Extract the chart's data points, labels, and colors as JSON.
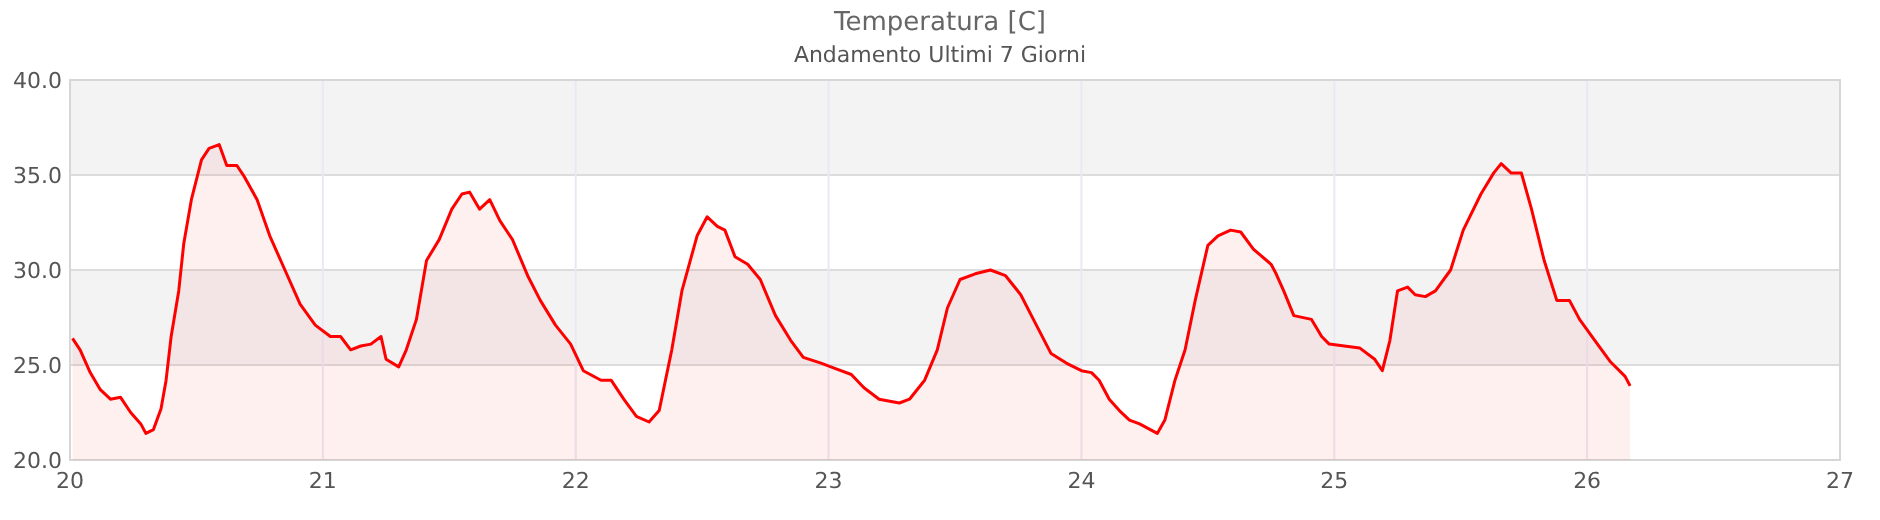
{
  "chart_data": {
    "type": "area",
    "title": "Temperatura [C]",
    "subtitle": "Andamento Ultimi 7 Giorni",
    "x": [
      20.01,
      20.04,
      20.08,
      20.12,
      20.16,
      20.2,
      20.24,
      20.28,
      20.3,
      20.33,
      20.36,
      20.38,
      20.4,
      20.43,
      20.45,
      20.48,
      20.52,
      20.55,
      20.59,
      20.62,
      20.66,
      20.69,
      20.74,
      20.79,
      20.85,
      20.91,
      20.97,
      21.03,
      21.07,
      21.11,
      21.15,
      21.19,
      21.23,
      21.25,
      21.3,
      21.33,
      21.37,
      21.41,
      21.46,
      21.51,
      21.55,
      21.58,
      21.62,
      21.66,
      21.7,
      21.75,
      21.81,
      21.86,
      21.92,
      21.98,
      22.03,
      22.1,
      22.14,
      22.19,
      22.24,
      22.29,
      22.33,
      22.38,
      22.42,
      22.48,
      22.52,
      22.56,
      22.59,
      22.63,
      22.68,
      22.73,
      22.79,
      22.85,
      22.9,
      22.97,
      23.03,
      23.09,
      23.14,
      23.2,
      23.28,
      23.32,
      23.38,
      23.43,
      23.47,
      23.52,
      23.58,
      23.64,
      23.7,
      23.76,
      23.81,
      23.88,
      23.94,
      24.0,
      24.04,
      24.07,
      24.11,
      24.15,
      24.19,
      24.23,
      24.3,
      24.33,
      24.37,
      24.41,
      24.45,
      24.5,
      24.54,
      24.59,
      24.63,
      24.68,
      24.75,
      24.77,
      24.8,
      24.84,
      24.91,
      24.95,
      24.98,
      25.04,
      25.1,
      25.16,
      25.19,
      25.22,
      25.25,
      25.29,
      25.32,
      25.36,
      25.4,
      25.46,
      25.51,
      25.58,
      25.63,
      25.66,
      25.7,
      25.74,
      25.78,
      25.83,
      25.88,
      25.93,
      25.97,
      26.03,
      26.09,
      26.15,
      26.17
    ],
    "series": [
      {
        "color": "#ff0000",
        "values": [
          26.4,
          25.8,
          24.6,
          23.7,
          23.2,
          23.3,
          22.5,
          21.9,
          21.4,
          21.6,
          22.7,
          24.2,
          26.5,
          28.9,
          31.4,
          33.7,
          35.8,
          36.4,
          36.6,
          35.5,
          35.5,
          34.9,
          33.7,
          31.8,
          30.0,
          28.2,
          27.1,
          26.5,
          26.5,
          25.8,
          26.0,
          26.1,
          26.5,
          25.3,
          24.9,
          25.8,
          27.4,
          30.5,
          31.6,
          33.2,
          34.0,
          34.1,
          33.2,
          33.7,
          32.6,
          31.6,
          29.7,
          28.4,
          27.1,
          26.1,
          24.7,
          24.2,
          24.2,
          23.2,
          22.3,
          22.0,
          22.6,
          25.8,
          28.9,
          31.8,
          32.8,
          32.3,
          32.1,
          30.7,
          30.3,
          29.5,
          27.6,
          26.3,
          25.4,
          25.1,
          24.8,
          24.5,
          23.8,
          23.2,
          23.0,
          23.2,
          24.2,
          25.8,
          28.0,
          29.5,
          29.8,
          30.0,
          29.7,
          28.7,
          27.4,
          25.6,
          25.1,
          24.7,
          24.6,
          24.2,
          23.2,
          22.6,
          22.1,
          21.9,
          21.4,
          22.1,
          24.2,
          25.8,
          28.4,
          31.3,
          31.8,
          32.1,
          32.0,
          31.1,
          30.3,
          29.8,
          28.9,
          27.6,
          27.4,
          26.5,
          26.1,
          26.0,
          25.9,
          25.3,
          24.7,
          26.3,
          28.9,
          29.1,
          28.7,
          28.6,
          28.9,
          30.0,
          32.1,
          34.0,
          35.1,
          35.6,
          35.1,
          35.1,
          33.2,
          30.5,
          28.4,
          28.4,
          27.4,
          26.3,
          25.2,
          24.4,
          23.9
        ]
      }
    ],
    "xlim": [
      20,
      27
    ],
    "xticks": [
      20,
      21,
      22,
      23,
      24,
      25,
      26,
      27
    ],
    "ylim": [
      20,
      40
    ],
    "yticks": [
      {
        "value": 20,
        "label": "20.0"
      },
      {
        "value": 25,
        "label": "25.0"
      },
      {
        "value": 30,
        "label": "30.0"
      },
      {
        "value": 35,
        "label": "35.0"
      },
      {
        "value": 40,
        "label": "40.0"
      }
    ],
    "bands": [
      {
        "axis": "y",
        "from": 25,
        "to": 30,
        "color": "#f3f3f4"
      },
      {
        "axis": "y",
        "from": 35,
        "to": 40,
        "color": "#f3f3f4"
      }
    ],
    "grid": true
  }
}
